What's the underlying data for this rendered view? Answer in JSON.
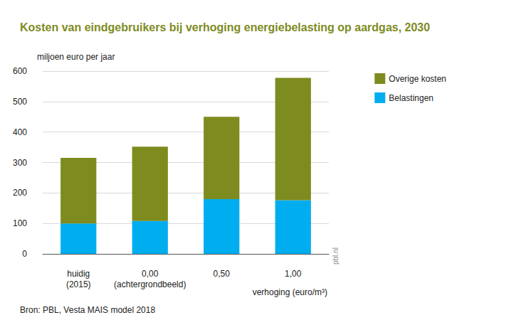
{
  "chart_data": {
    "type": "bar",
    "title": "Kosten van eindgebruikers bij verhoging energiebelasting op aardgas, 2030",
    "y_label": "miljoen euro per jaar",
    "x_label": "verhoging (euro/m³)",
    "source": "Bron: PBL, Vesta MAIS model 2018",
    "annotations": [
      "pbl.nl"
    ],
    "categories": [
      "huidig\n(2015)",
      "0,00\n(achtergrondbeeld)",
      "0,50",
      "1,00"
    ],
    "series": [
      {
        "name": "Belastingen",
        "color": "#00adef",
        "values": [
          100,
          108,
          180,
          176
        ]
      },
      {
        "name": "Overige kosten",
        "color": "#7e8b1f",
        "values": [
          215,
          244,
          270,
          402
        ]
      }
    ],
    "stacked": true,
    "ylim": [
      0,
      600
    ],
    "yticks": [
      0,
      100,
      200,
      300,
      400,
      500,
      600
    ],
    "grid": true,
    "legend": "top-right",
    "data_labels": false
  }
}
